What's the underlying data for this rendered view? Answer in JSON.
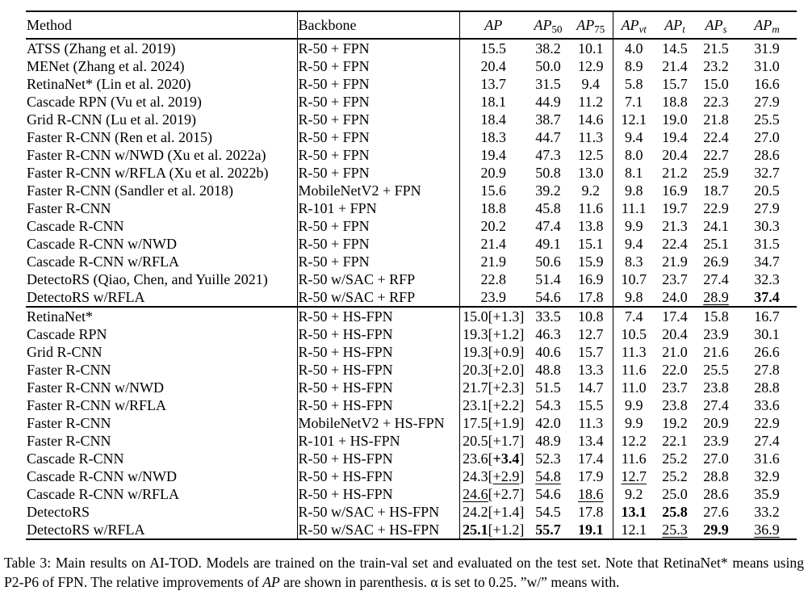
{
  "colors": {
    "text": "#000000",
    "background": "#ffffff",
    "rule": "#000000"
  },
  "table": {
    "header": {
      "method_label": "Method",
      "backbone_label": "Backbone",
      "metric_columns": [
        {
          "base": "AP",
          "sub": ""
        },
        {
          "base": "AP",
          "sub": "50"
        },
        {
          "base": "AP",
          "sub": "75"
        },
        {
          "base": "AP",
          "sub": "vt"
        },
        {
          "base": "AP",
          "sub": "t"
        },
        {
          "base": "AP",
          "sub": "s"
        },
        {
          "base": "AP",
          "sub": "m"
        }
      ]
    },
    "sections": [
      {
        "rows": [
          {
            "method": "ATSS (Zhang et al. 2019)",
            "backbone": "R-50 + FPN",
            "values": [
              "15.5",
              "38.2",
              "10.1",
              "4.0",
              "14.5",
              "21.5",
              "31.9"
            ]
          },
          {
            "method": "MENet (Zhang et al. 2024)",
            "backbone": "R-50 + FPN",
            "values": [
              "20.4",
              "50.0",
              "12.9",
              "8.9",
              "21.4",
              "23.2",
              "31.0"
            ]
          },
          {
            "method": "RetinaNet* (Lin et al. 2020)",
            "backbone": "R-50 + FPN",
            "values": [
              "13.7",
              "31.5",
              "9.4",
              "5.8",
              "15.7",
              "15.0",
              "16.6"
            ]
          },
          {
            "method": "Cascade RPN (Vu et al. 2019)",
            "backbone": "R-50 + FPN",
            "values": [
              "18.1",
              "44.9",
              "11.2",
              "7.1",
              "18.8",
              "22.3",
              "27.9"
            ]
          },
          {
            "method": "Grid R-CNN (Lu et al. 2019)",
            "backbone": "R-50 + FPN",
            "values": [
              "18.4",
              "38.7",
              "14.6",
              "12.1",
              "19.0",
              "21.8",
              "25.5"
            ]
          },
          {
            "method": "Faster R-CNN (Ren et al. 2015)",
            "backbone": "R-50 + FPN",
            "values": [
              "18.3",
              "44.7",
              "11.3",
              "9.4",
              "19.4",
              "22.4",
              "27.0"
            ]
          },
          {
            "method": "Faster R-CNN w/NWD (Xu et al. 2022a)",
            "backbone": "R-50 + FPN",
            "values": [
              "19.4",
              "47.3",
              "12.5",
              "8.0",
              "20.4",
              "22.7",
              "28.6"
            ]
          },
          {
            "method": "Faster R-CNN w/RFLA (Xu et al. 2022b)",
            "backbone": "R-50 + FPN",
            "values": [
              "20.9",
              "50.8",
              "13.0",
              "8.1",
              "21.2",
              "25.9",
              "32.7"
            ]
          },
          {
            "method": "Faster R-CNN (Sandler et al. 2018)",
            "backbone": "MobileNetV2 + FPN",
            "values": [
              "15.6",
              "39.2",
              "9.2",
              "9.8",
              "16.9",
              "18.7",
              "20.5"
            ]
          },
          {
            "method": "Faster R-CNN",
            "backbone": "R-101 + FPN",
            "values": [
              "18.8",
              "45.8",
              "11.6",
              "11.1",
              "19.7",
              "22.9",
              "27.9"
            ]
          },
          {
            "method": "Cascade R-CNN",
            "backbone": "R-50 + FPN",
            "values": [
              "20.2",
              "47.4",
              "13.8",
              "9.9",
              "21.3",
              "24.1",
              "30.3"
            ]
          },
          {
            "method": "Cascade R-CNN w/NWD",
            "backbone": "R-50 + FPN",
            "values": [
              "21.4",
              "49.1",
              "15.1",
              "9.4",
              "22.4",
              "25.1",
              "31.5"
            ]
          },
          {
            "method": "Cascade R-CNN w/RFLA",
            "backbone": "R-50 + FPN",
            "values": [
              "21.9",
              "50.6",
              "15.9",
              "8.3",
              "21.9",
              "26.9",
              "34.7"
            ]
          },
          {
            "method": "DetectoRS (Qiao, Chen, and Yuille 2021)",
            "backbone": "R-50 w/SAC + RFP",
            "values": [
              "22.8",
              "51.4",
              "16.9",
              "10.7",
              "23.7",
              "27.4",
              "32.3"
            ]
          },
          {
            "method": "DetectoRS w/RFLA",
            "backbone": "R-50 w/SAC + RFP",
            "values": [
              "23.9",
              "54.6",
              "17.8",
              "9.8",
              "24.0",
              "__28.9__",
              "**37.4**"
            ]
          }
        ]
      },
      {
        "rows": [
          {
            "method": "RetinaNet*",
            "backbone": "R-50 + HS-FPN",
            "values": [
              "15.0[+1.3]",
              "33.5",
              "10.8",
              "7.4",
              "17.4",
              "15.8",
              "16.7"
            ]
          },
          {
            "method": "Cascade RPN",
            "backbone": "R-50 + HS-FPN",
            "values": [
              "19.3[+1.2]",
              "46.3",
              "12.7",
              "10.5",
              "20.4",
              "23.9",
              "30.1"
            ]
          },
          {
            "method": "Grid R-CNN",
            "backbone": "R-50 + HS-FPN",
            "values": [
              "19.3[+0.9]",
              "40.6",
              "15.7",
              "11.3",
              "21.0",
              "21.6",
              "26.6"
            ]
          },
          {
            "method": "Faster R-CNN",
            "backbone": "R-50 + HS-FPN",
            "values": [
              "20.3[+2.0]",
              "48.8",
              "13.3",
              "11.6",
              "22.0",
              "25.5",
              "27.8"
            ]
          },
          {
            "method": "Faster R-CNN w/NWD",
            "backbone": "R-50 + HS-FPN",
            "values": [
              "21.7[+2.3]",
              "51.5",
              "14.7",
              "11.0",
              "23.7",
              "23.8",
              "28.8"
            ]
          },
          {
            "method": "Faster R-CNN w/RFLA",
            "backbone": "R-50 + HS-FPN",
            "values": [
              "23.1[+2.2]",
              "54.3",
              "15.5",
              "9.9",
              "23.8",
              "27.4",
              "33.6"
            ]
          },
          {
            "method": "Faster R-CNN",
            "backbone": "MobileNetV2 + HS-FPN",
            "values": [
              "17.5[+1.9]",
              "42.0",
              "11.3",
              "9.9",
              "19.2",
              "20.9",
              "22.9"
            ]
          },
          {
            "method": "Faster R-CNN",
            "backbone": "R-101 + HS-FPN",
            "values": [
              "20.5[+1.7]",
              "48.9",
              "13.4",
              "12.2",
              "22.1",
              "23.9",
              "27.4"
            ]
          },
          {
            "method": "Cascade R-CNN",
            "backbone": "R-50 + HS-FPN",
            "values": [
              "23.6[**+3.4**]",
              "52.3",
              "17.4",
              "11.6",
              "25.2",
              "27.0",
              "31.6"
            ]
          },
          {
            "method": "Cascade R-CNN w/NWD",
            "backbone": "R-50 + HS-FPN",
            "values": [
              "24.3[__+2.9__]",
              "__54.8__",
              "17.9",
              "__12.7__",
              "25.2",
              "28.8",
              "32.9"
            ]
          },
          {
            "method": "Cascade R-CNN w/RFLA",
            "backbone": "R-50 + HS-FPN",
            "values": [
              "__24.6__[+2.7]",
              "54.6",
              "__18.6__",
              "9.2",
              "25.0",
              "28.6",
              "35.9"
            ]
          },
          {
            "method": "DetectoRS",
            "backbone": "R-50 w/SAC + HS-FPN",
            "values": [
              "24.2[+1.4]",
              "54.5",
              "17.8",
              "**13.1**",
              "**25.8**",
              "27.6",
              "33.2"
            ]
          },
          {
            "method": "DetectoRS w/RFLA",
            "backbone": "R-50 w/SAC + HS-FPN",
            "values": [
              "**25.1**[+1.2]",
              "**55.7**",
              "**19.1**",
              "12.1",
              "__25.3__",
              "**29.9**",
              "__36.9__"
            ]
          }
        ]
      }
    ]
  },
  "caption": "Table 3: Main results on AI-TOD. Models are trained on the train-val set and evaluated on the test set. Note that RetinaNet* means using P2-P6 of FPN. The relative improvements of //AP// are shown in parenthesis. α is set to 0.25. ”w/” means with."
}
